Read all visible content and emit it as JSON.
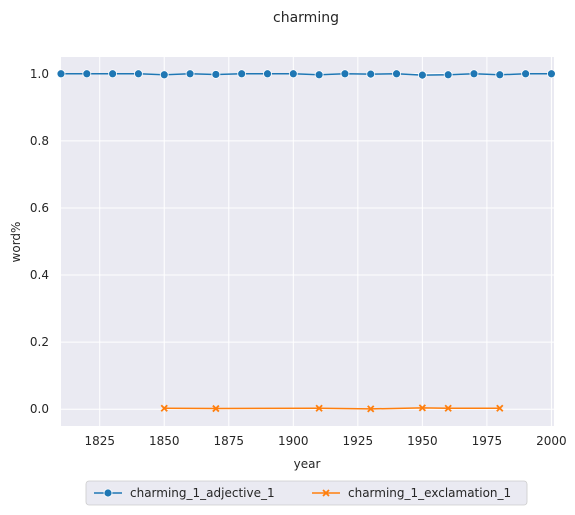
{
  "chart_data": {
    "type": "line",
    "title": "charming",
    "xlabel": "year",
    "ylabel": "word%",
    "xlim": [
      1810,
      2001
    ],
    "ylim": [
      -0.05,
      1.05
    ],
    "xticks": [
      1825,
      1850,
      1875,
      1900,
      1925,
      1950,
      1975,
      2000
    ],
    "xtick_labels": [
      "1825",
      "1850",
      "1875",
      "1900",
      "1925",
      "1950",
      "1975",
      "2000"
    ],
    "yticks": [
      0.0,
      0.2,
      0.4,
      0.6,
      0.8,
      1.0
    ],
    "ytick_labels": [
      "0.0",
      "0.2",
      "0.4",
      "0.6",
      "0.8",
      "1.0"
    ],
    "grid": true,
    "legend_position": "bottom-center",
    "series": [
      {
        "name": "charming_1_adjective_1",
        "color": "#1f77b4",
        "marker": "circle",
        "x": [
          1810,
          1820,
          1830,
          1840,
          1850,
          1860,
          1870,
          1880,
          1890,
          1900,
          1910,
          1920,
          1930,
          1940,
          1950,
          1960,
          1970,
          1980,
          1990,
          2000
        ],
        "y": [
          1.0,
          1.0,
          1.0,
          1.0,
          0.997,
          1.0,
          0.998,
          1.0,
          1.0,
          1.0,
          0.997,
          1.0,
          0.999,
          1.0,
          0.996,
          0.997,
          1.0,
          0.997,
          1.0,
          1.0
        ]
      },
      {
        "name": "charming_1_exclamation_1",
        "color": "#ff7f0e",
        "marker": "x",
        "x": [
          1850,
          1870,
          1910,
          1930,
          1950,
          1960,
          1980
        ],
        "y": [
          0.003,
          0.002,
          0.003,
          0.001,
          0.004,
          0.003,
          0.003
        ]
      }
    ]
  }
}
